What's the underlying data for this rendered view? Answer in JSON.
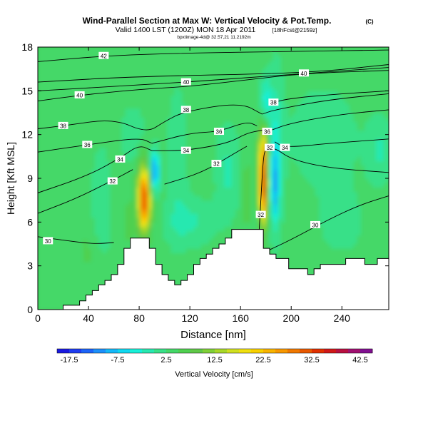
{
  "chart_data": {
    "type": "heatmap",
    "title": "Wind-Parallel Section at Max W: Vertical Velocity & Pot.Temp.",
    "title_mark": "(C)",
    "subtitle": "Valid 1400 LST (1200Z) MON 18 Apr 2011",
    "subtitle_tag": "[18hFcst@2159z]",
    "subsubtitle": "bpxtimage-4d@ 32.57,21 11.2192m",
    "xlabel": "Distance [nm]",
    "ylabel": "Height [Kft MSL]",
    "xlim": [
      0,
      277
    ],
    "ylim": [
      0,
      18
    ],
    "xticks": [
      0,
      40,
      80,
      120,
      160,
      200,
      240
    ],
    "yticks": [
      0,
      3,
      6,
      9,
      12,
      15,
      18
    ],
    "colorbar": {
      "label": "Vertical Velocity [cm/s]",
      "range": [
        -20,
        45
      ],
      "tick_labels": [
        "-17.5",
        "-7.5",
        "2.5",
        "12.5",
        "22.5",
        "32.5",
        "42.5"
      ],
      "tick_values": [
        -17.5,
        -7.5,
        2.5,
        12.5,
        22.5,
        32.5,
        42.5
      ],
      "colors": [
        "#1a1ae0",
        "#1e3cf0",
        "#1c64f8",
        "#1c90fa",
        "#14b8f8",
        "#10d8f0",
        "#18f0d8",
        "#28e8b0",
        "#38e088",
        "#44d868",
        "#50d050",
        "#60c848",
        "#80d038",
        "#a8d828",
        "#d0e020",
        "#f0e010",
        "#f8d000",
        "#f8b400",
        "#f89800",
        "#f07800",
        "#e85800",
        "#e03000",
        "#d01818",
        "#b81040",
        "#a01070",
        "#801090"
      ]
    },
    "terrain": {
      "x": [
        0,
        20,
        20,
        33,
        33,
        38,
        38,
        43,
        43,
        48,
        48,
        53,
        53,
        58,
        58,
        63,
        63,
        68,
        68,
        73,
        73,
        88,
        88,
        93,
        93,
        98,
        98,
        103,
        103,
        108,
        108,
        113,
        113,
        118,
        118,
        123,
        123,
        128,
        128,
        133,
        133,
        138,
        138,
        143,
        143,
        148,
        148,
        153,
        153,
        158,
        158,
        178,
        178,
        183,
        183,
        188,
        188,
        198,
        198,
        213,
        213,
        218,
        218,
        223,
        223,
        243,
        243,
        258,
        258,
        268,
        268,
        277
      ],
      "height": [
        0.0,
        0.0,
        0.3,
        0.3,
        0.6,
        0.6,
        1.0,
        1.0,
        1.3,
        1.3,
        1.7,
        1.7,
        2.0,
        2.0,
        2.4,
        2.4,
        3.1,
        3.1,
        4.2,
        4.2,
        4.9,
        4.9,
        4.2,
        4.2,
        3.1,
        3.1,
        2.4,
        2.4,
        2.0,
        2.0,
        1.7,
        1.7,
        2.0,
        2.0,
        2.4,
        2.4,
        3.1,
        3.1,
        3.5,
        3.5,
        3.8,
        3.8,
        4.2,
        4.2,
        4.5,
        4.5,
        4.9,
        4.9,
        5.5,
        5.5,
        5.5,
        5.5,
        4.2,
        4.2,
        3.8,
        3.8,
        3.5,
        3.5,
        2.8,
        2.8,
        2.4,
        2.4,
        2.8,
        2.8,
        3.1,
        3.1,
        3.5,
        3.5,
        3.1,
        3.1,
        3.5,
        3.5
      ]
    },
    "isotherms": [
      {
        "label": "30",
        "label_xy": [
          8,
          4.7
        ],
        "points": [
          [
            0,
            5.0
          ],
          [
            25,
            4.7
          ],
          [
            45,
            4.5
          ],
          [
            60,
            4.6
          ]
        ]
      },
      {
        "label": "30",
        "label_xy": [
          219,
          5.8
        ],
        "points": [
          [
            183,
            4.1
          ],
          [
            200,
            4.8
          ],
          [
            230,
            6.2
          ],
          [
            255,
            7.2
          ],
          [
            277,
            7.8
          ]
        ]
      },
      {
        "label": "32",
        "label_xy": [
          59,
          8.8
        ],
        "points": [
          [
            0,
            6.6
          ],
          [
            30,
            7.6
          ],
          [
            60,
            8.9
          ],
          [
            75,
            9.6
          ]
        ]
      },
      {
        "label": "32",
        "label_xy": [
          141,
          10.0
        ],
        "points": [
          [
            100,
            8.6
          ],
          [
            130,
            9.4
          ],
          [
            155,
            10.7
          ],
          [
            165,
            11.2
          ]
        ]
      },
      {
        "label": "32",
        "label_xy": [
          176,
          6.5
        ],
        "points": [
          [
            174,
            4.3
          ],
          [
            176,
            7.5
          ],
          [
            178,
            10.5
          ],
          [
            180,
            11.0
          ]
        ]
      },
      {
        "label": "32",
        "label_xy": [
          183,
          11.1
        ],
        "points": [
          [
            180,
            11.0
          ],
          [
            187,
            11.1
          ],
          [
            200,
            10.3
          ],
          [
            230,
            9.7
          ],
          [
            277,
            9.4
          ]
        ]
      },
      {
        "label": "34",
        "label_xy": [
          65,
          10.3
        ],
        "points": [
          [
            0,
            8.0
          ],
          [
            40,
            9.2
          ],
          [
            65,
            10.4
          ],
          [
            80,
            11.3
          ],
          [
            90,
            10.9
          ]
        ]
      },
      {
        "label": "34",
        "label_xy": [
          117,
          10.9
        ],
        "points": [
          [
            90,
            10.9
          ],
          [
            117,
            10.9
          ],
          [
            150,
            11.4
          ],
          [
            165,
            12.1
          ],
          [
            177,
            12.3
          ]
        ]
      },
      {
        "label": "34",
        "label_xy": [
          195,
          11.1
        ],
        "points": [
          [
            187,
            11.5
          ],
          [
            195,
            11.1
          ],
          [
            230,
            11.4
          ],
          [
            277,
            11.7
          ]
        ]
      },
      {
        "label": "36",
        "label_xy": [
          39,
          11.3
        ],
        "points": [
          [
            0,
            10.8
          ],
          [
            39,
            11.3
          ],
          [
            80,
            11.8
          ],
          [
            90,
            11.4
          ]
        ]
      },
      {
        "label": "36",
        "label_xy": [
          143,
          12.2
        ],
        "points": [
          [
            90,
            11.4
          ],
          [
            120,
            12.1
          ],
          [
            143,
            12.2
          ],
          [
            165,
            12.9
          ],
          [
            173,
            12.6
          ]
        ]
      },
      {
        "label": "36",
        "label_xy": [
          181,
          12.2
        ],
        "points": [
          [
            181,
            12.2
          ],
          [
            200,
            12.8
          ],
          [
            240,
            13.4
          ],
          [
            277,
            13.7
          ]
        ]
      },
      {
        "label": "38",
        "label_xy": [
          20,
          12.6
        ],
        "points": [
          [
            0,
            12.4
          ],
          [
            20,
            12.6
          ],
          [
            60,
            13.1
          ],
          [
            86,
            12.1
          ],
          [
            100,
            12.9
          ],
          [
            116,
            13.6
          ],
          [
            160,
            14.2
          ],
          [
            177,
            13.4
          ]
        ]
      },
      {
        "label": "38",
        "label_xy": [
          117,
          13.7
        ],
        "points": [
          [
            177,
            13.4
          ],
          [
            187,
            13.7
          ],
          [
            230,
            14.4
          ],
          [
            277,
            14.8
          ]
        ]
      },
      {
        "label": "38",
        "label_xy": [
          186,
          14.2
        ],
        "points": [
          [
            186,
            14.2
          ],
          [
            200,
            14.5
          ],
          [
            240,
            14.8
          ],
          [
            277,
            15.0
          ]
        ]
      },
      {
        "label": "40",
        "label_xy": [
          33,
          14.7
        ],
        "points": [
          [
            0,
            14.3
          ],
          [
            33,
            14.7
          ],
          [
            80,
            15.1
          ],
          [
            120,
            15.3
          ],
          [
            160,
            15.7
          ],
          [
            210,
            16.2
          ],
          [
            277,
            16.4
          ]
        ]
      },
      {
        "label": "40",
        "label_xy": [
          117,
          15.6
        ],
        "points": [
          [
            0,
            15.0
          ],
          [
            60,
            15.3
          ],
          [
            117,
            15.6
          ],
          [
            180,
            16.0
          ],
          [
            277,
            16.6
          ]
        ]
      },
      {
        "label": "40",
        "label_xy": [
          210,
          16.2
        ],
        "points": [
          [
            0,
            15.6
          ],
          [
            80,
            16.0
          ],
          [
            210,
            16.2
          ],
          [
            277,
            16.8
          ]
        ]
      },
      {
        "label": "42",
        "label_xy": [
          52,
          17.4
        ],
        "points": [
          [
            0,
            17.0
          ],
          [
            52,
            17.4
          ],
          [
            120,
            17.6
          ],
          [
            200,
            17.7
          ],
          [
            277,
            17.8
          ]
        ]
      }
    ],
    "updraft_cores": [
      {
        "x": 84,
        "z": 7.5,
        "max_w": 32
      },
      {
        "x": 178,
        "z": 8.5,
        "max_w": 35
      }
    ]
  }
}
